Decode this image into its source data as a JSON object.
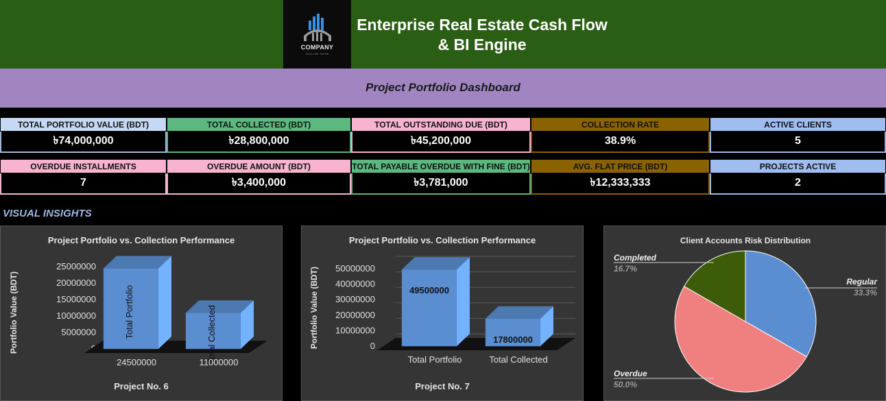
{
  "header": {
    "logo_text": "COMPANY",
    "logo_tagline": "TAGLINE HERE",
    "title_line1": "Enterprise Real Estate Cash Flow",
    "title_line2": "& BI Engine"
  },
  "subheader": {
    "title": "Project Portfolio Dashboard"
  },
  "kpis_row1": [
    {
      "label": "TOTAL PORTFOLIO VALUE (BDT)",
      "value": "৳74,000,000",
      "color": "#c5d8f4"
    },
    {
      "label": "TOTAL COLLECTED (BDT)",
      "value": "৳28,800,000",
      "color": "#5bb87f"
    },
    {
      "label": "TOTAL OUTSTANDING DUE (BDT)",
      "value": "৳45,200,000",
      "color": "#f7b3cf"
    },
    {
      "label": "COLLECTION RATE",
      "value": "38.9%",
      "color": "#8a6200"
    },
    {
      "label": "ACTIVE CLIENTS",
      "value": "5",
      "color": "#9fbdf0"
    }
  ],
  "kpis_row2": [
    {
      "label": "OVERDUE INSTALLMENTS",
      "value": "7",
      "color": "#f7b3cf"
    },
    {
      "label": "OVERDUE AMOUNT (BDT)",
      "value": "৳3,400,000",
      "color": "#f7b3cf"
    },
    {
      "label": "TOTAL PAYABLE OVERDUE WITH FINE (BDT)",
      "value": "৳3,781,000",
      "color": "#5bb87f"
    },
    {
      "label": "AVG. FLAT PRICE (BDT)",
      "value": "৳12,333,333",
      "color": "#8a6200"
    },
    {
      "label": "PROJECTS ACTIVE",
      "value": "2",
      "color": "#9fbdf0"
    }
  ],
  "section": {
    "title": "VISUAL INSIGHTS"
  },
  "chart_data": [
    {
      "type": "bar",
      "title": "Project Portfolio vs. Collection Performance",
      "xlabel": "Project No. 6",
      "ylabel": "Portfolio Value (BDT)",
      "categories": [
        "24500000",
        "11000000"
      ],
      "bar_labels": [
        "Total Portfolio",
        "Total Collected"
      ],
      "values": [
        24500000,
        11000000
      ],
      "y_ticks": [
        "0",
        "5000000",
        "10000000",
        "15000000",
        "20000000",
        "25000000"
      ],
      "ylim": [
        0,
        25000000
      ],
      "color": "#5b8ed0"
    },
    {
      "type": "bar",
      "title": "Project Portfolio vs. Collection Performance",
      "xlabel": "Project No. 7",
      "ylabel": "Portfolio Value (BDT)",
      "categories": [
        "Total Portfolio",
        "Total Collected"
      ],
      "values": [
        49500000,
        17800000
      ],
      "data_labels": [
        "49500000",
        "17800000"
      ],
      "y_ticks": [
        "0",
        "10000000",
        "20000000",
        "30000000",
        "40000000",
        "50000000"
      ],
      "ylim": [
        0,
        50000000
      ],
      "color": "#5b8ed0"
    },
    {
      "type": "pie",
      "title": "Client Accounts Risk Distribution",
      "slices": [
        {
          "label": "Regular",
          "pct_label": "33.3%",
          "value": 33.3,
          "color": "#5b8ed0"
        },
        {
          "label": "Overdue",
          "pct_label": "50.0%",
          "value": 50.0,
          "color": "#f08080"
        },
        {
          "label": "Completed",
          "pct_label": "16.7%",
          "value": 16.7,
          "color": "#3d5c0a"
        }
      ]
    }
  ]
}
